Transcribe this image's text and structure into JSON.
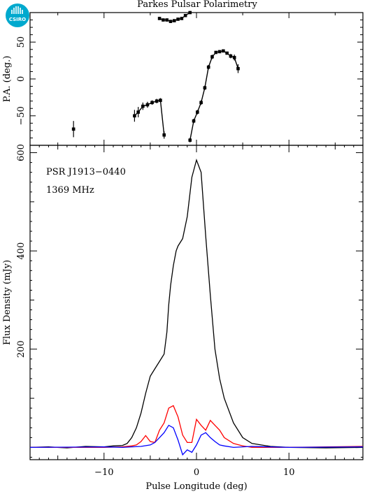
{
  "title": "Parkes Pulsar Polarimetry",
  "logo": {
    "text": "CSIRO",
    "color": "#00a9ce"
  },
  "annotations": {
    "psr": "PSR J1913−0440",
    "freq": "1369 MHz"
  },
  "colors": {
    "total": "#000000",
    "linear": "#ff0000",
    "circular": "#0000ff"
  },
  "chart_data": [
    {
      "type": "scatter",
      "ylabel": "P.A. (deg.)",
      "xlim": [
        -18,
        18
      ],
      "ylim": [
        -90,
        90
      ],
      "yticks": [
        -50,
        0,
        50
      ],
      "points": [
        {
          "x": -13.3,
          "y": -68,
          "err": 11
        },
        {
          "x": -6.7,
          "y": -50,
          "err": 8
        },
        {
          "x": -6.3,
          "y": -45,
          "err": 7
        },
        {
          "x": -5.8,
          "y": -37,
          "err": 5
        },
        {
          "x": -5.3,
          "y": -35,
          "err": 4
        },
        {
          "x": -4.8,
          "y": -32,
          "err": 3
        },
        {
          "x": -4.3,
          "y": -30,
          "err": 3
        },
        {
          "x": -3.9,
          "y": -29,
          "err": 3
        },
        {
          "x": -3.5,
          "y": -76,
          "err": 5
        },
        {
          "x": -4.0,
          "y": 82,
          "err": 2
        },
        {
          "x": -3.6,
          "y": 80,
          "err": 2
        },
        {
          "x": -3.2,
          "y": 80,
          "err": 2
        },
        {
          "x": -2.8,
          "y": 78,
          "err": 2
        },
        {
          "x": -2.4,
          "y": 79,
          "err": 2
        },
        {
          "x": -2.0,
          "y": 81,
          "err": 2
        },
        {
          "x": -1.6,
          "y": 82,
          "err": 2
        },
        {
          "x": -1.2,
          "y": 86,
          "err": 2
        },
        {
          "x": -0.7,
          "y": 90,
          "err": 2
        },
        {
          "x": -0.7,
          "y": -83,
          "err": 3
        },
        {
          "x": -0.3,
          "y": -57,
          "err": 3
        },
        {
          "x": 0.1,
          "y": -45,
          "err": 3
        },
        {
          "x": 0.5,
          "y": -32,
          "err": 3
        },
        {
          "x": 0.9,
          "y": -12,
          "err": 3
        },
        {
          "x": 1.3,
          "y": 16,
          "err": 3
        },
        {
          "x": 1.7,
          "y": 30,
          "err": 3
        },
        {
          "x": 2.1,
          "y": 36,
          "err": 2
        },
        {
          "x": 2.5,
          "y": 37,
          "err": 2
        },
        {
          "x": 2.9,
          "y": 38,
          "err": 2
        },
        {
          "x": 3.3,
          "y": 35,
          "err": 2
        },
        {
          "x": 3.7,
          "y": 31,
          "err": 3
        },
        {
          "x": 4.1,
          "y": 29,
          "err": 4
        },
        {
          "x": 4.5,
          "y": 14,
          "err": 6
        }
      ],
      "segments": [
        [
          1,
          8
        ],
        [
          9,
          17
        ],
        [
          18,
          31
        ]
      ]
    },
    {
      "type": "line",
      "xlabel": "Pulse Longitude (deg)",
      "ylabel": "Flux Density (mJy)",
      "xlim": [
        -18,
        18
      ],
      "ylim": [
        -25,
        615
      ],
      "xticks": [
        -10,
        0,
        10
      ],
      "yticks": [
        200,
        400,
        600
      ],
      "series": [
        {
          "color": "#000000",
          "x": [
            -18,
            -16,
            -14,
            -12,
            -10,
            -9,
            -8,
            -7.5,
            -7,
            -6.5,
            -6,
            -5.5,
            -5,
            -4.5,
            -4,
            -3.5,
            -3.2,
            -3,
            -2.8,
            -2.5,
            -2.2,
            -2,
            -1.5,
            -1,
            -0.5,
            0,
            0.5,
            1,
            1.5,
            2,
            2.5,
            3,
            4,
            5,
            6,
            8,
            10,
            14,
            18
          ],
          "y": [
            0,
            1,
            -1,
            2,
            1,
            3,
            4,
            8,
            20,
            40,
            70,
            110,
            145,
            160,
            175,
            190,
            235,
            290,
            330,
            370,
            400,
            410,
            425,
            470,
            550,
            585,
            560,
            430,
            310,
            200,
            140,
            100,
            50,
            20,
            8,
            2,
            0,
            -1,
            0
          ]
        },
        {
          "color": "#ff0000",
          "x": [
            -18,
            -10,
            -8,
            -7,
            -6.5,
            -6,
            -5.5,
            -5,
            -4.5,
            -4,
            -3.5,
            -3,
            -2.5,
            -2,
            -1.5,
            -1,
            -0.5,
            0,
            0.5,
            1,
            1.5,
            2,
            2.5,
            3,
            4,
            5,
            6,
            10,
            18
          ],
          "y": [
            0,
            0,
            1,
            3,
            5,
            12,
            24,
            12,
            10,
            35,
            50,
            80,
            85,
            62,
            25,
            10,
            10,
            57,
            45,
            35,
            55,
            45,
            35,
            20,
            8,
            3,
            0,
            0,
            2
          ]
        },
        {
          "color": "#0000ff",
          "x": [
            -18,
            -10,
            -8,
            -6,
            -5,
            -4.5,
            -4,
            -3.5,
            -3,
            -2.5,
            -2,
            -1.5,
            -1,
            -0.5,
            0,
            0.5,
            1,
            1.5,
            2,
            2.5,
            3,
            4,
            6,
            10,
            18
          ],
          "y": [
            0,
            1,
            0,
            2,
            5,
            10,
            20,
            30,
            45,
            40,
            15,
            -15,
            -5,
            -10,
            5,
            25,
            30,
            20,
            12,
            5,
            3,
            0,
            2,
            0,
            1
          ]
        }
      ]
    }
  ]
}
